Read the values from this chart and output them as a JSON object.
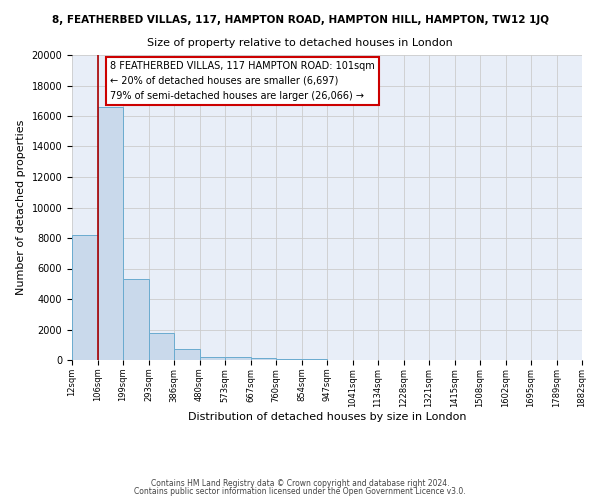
{
  "title_line1": "8, FEATHERBED VILLAS, 117, HAMPTON ROAD, HAMPTON HILL, HAMPTON, TW12 1JQ",
  "title_line2": "Size of property relative to detached houses in London",
  "xlabel": "Distribution of detached houses by size in London",
  "ylabel": "Number of detached properties",
  "bin_labels": [
    "12sqm",
    "106sqm",
    "199sqm",
    "293sqm",
    "386sqm",
    "480sqm",
    "573sqm",
    "667sqm",
    "760sqm",
    "854sqm",
    "947sqm",
    "1041sqm",
    "1134sqm",
    "1228sqm",
    "1321sqm",
    "1415sqm",
    "1508sqm",
    "1602sqm",
    "1695sqm",
    "1789sqm",
    "1882sqm"
  ],
  "bar_heights": [
    8200,
    16600,
    5300,
    1750,
    750,
    200,
    175,
    110,
    85,
    50,
    0,
    0,
    0,
    0,
    0,
    0,
    0,
    0,
    0,
    0
  ],
  "bar_color": "#c9d9eb",
  "bar_edge_color": "#6aabcf",
  "property_line_color": "#aa0000",
  "annotation_title": "8 FEATHERBED VILLAS, 117 HAMPTON ROAD: 101sqm",
  "annotation_line1": "← 20% of detached houses are smaller (6,697)",
  "annotation_line2": "79% of semi-detached houses are larger (26,066) →",
  "annotation_box_color": "#ffffff",
  "annotation_border_color": "#cc0000",
  "ylim": [
    0,
    20000
  ],
  "yticks": [
    0,
    2000,
    4000,
    6000,
    8000,
    10000,
    12000,
    14000,
    16000,
    18000,
    20000
  ],
  "grid_color": "#cccccc",
  "bg_color": "#e8eef8",
  "fig_bg_color": "#ffffff",
  "footer_line1": "Contains HM Land Registry data © Crown copyright and database right 2024.",
  "footer_line2": "Contains public sector information licensed under the Open Government Licence v3.0."
}
